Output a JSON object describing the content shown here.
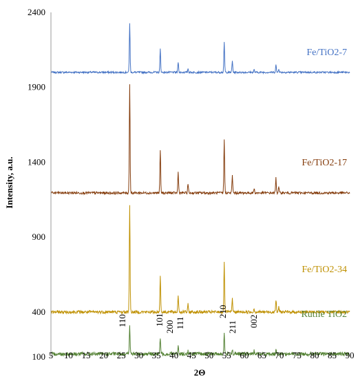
{
  "chart_data": {
    "type": "line",
    "xlabel": "2Θ",
    "ylabel": "Intensity, a.u.",
    "xlim": [
      5,
      90
    ],
    "ylim": [
      100,
      2400
    ],
    "x_ticks": [
      5,
      10,
      15,
      20,
      25,
      30,
      35,
      40,
      45,
      50,
      55,
      60,
      65,
      70,
      75,
      80,
      85,
      90
    ],
    "y_ticks": [
      100,
      400,
      900,
      1400,
      1900,
      2400
    ],
    "grid": false,
    "series": [
      {
        "name": "Fe/TiO2-7",
        "color": "#4472c4",
        "baseline": 2000,
        "peaks": [
          [
            27.4,
            330
          ],
          [
            36.1,
            155
          ],
          [
            41.2,
            70
          ],
          [
            44.0,
            25
          ],
          [
            54.3,
            200
          ],
          [
            56.6,
            75
          ],
          [
            62.8,
            18
          ],
          [
            69.0,
            50
          ],
          [
            69.8,
            25
          ]
        ]
      },
      {
        "name": "Fe/TiO2-17",
        "color": "#843c0c",
        "baseline": 1195,
        "peaks": [
          [
            27.4,
            730
          ],
          [
            36.1,
            290
          ],
          [
            41.2,
            140
          ],
          [
            44.0,
            60
          ],
          [
            54.3,
            360
          ],
          [
            56.6,
            115
          ],
          [
            62.8,
            30
          ],
          [
            69.0,
            100
          ],
          [
            69.8,
            40
          ]
        ]
      },
      {
        "name": "Fe/TiO2-34",
        "color": "#bf9000",
        "baseline": 400,
        "peaks": [
          [
            27.4,
            720
          ],
          [
            36.1,
            245
          ],
          [
            41.2,
            115
          ],
          [
            44.0,
            50
          ],
          [
            54.3,
            325
          ],
          [
            56.6,
            90
          ],
          [
            62.8,
            25
          ],
          [
            69.0,
            85
          ],
          [
            69.8,
            35
          ]
        ]
      },
      {
        "name": "Rutile TiO2",
        "color": "#548235",
        "baseline": 120,
        "peaks": [
          [
            27.4,
            190
          ],
          [
            36.1,
            110
          ],
          [
            39.2,
            15
          ],
          [
            41.2,
            50
          ],
          [
            44.0,
            18
          ],
          [
            54.3,
            135
          ],
          [
            56.6,
            30
          ],
          [
            62.8,
            20
          ],
          [
            69.0,
            30
          ]
        ]
      }
    ],
    "annotations": [
      "110",
      "101",
      "200",
      "111",
      "210",
      "211",
      "002"
    ]
  }
}
